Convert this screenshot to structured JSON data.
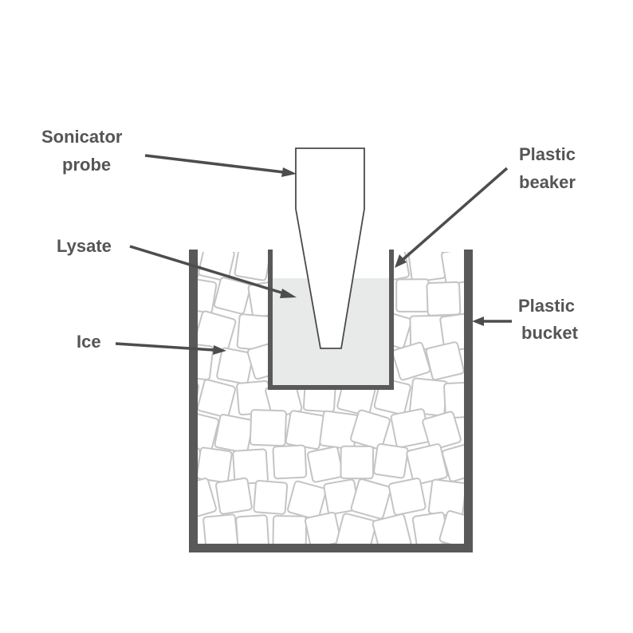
{
  "labels": {
    "sonicator_probe": [
      "Sonicator",
      "probe"
    ],
    "plastic_beaker": [
      "Plastic",
      "beaker"
    ],
    "lysate": "Lysate",
    "ice": "Ice",
    "plastic_bucket": [
      "Plastic",
      "bucket"
    ]
  },
  "colors": {
    "bucket_wall": "#595959",
    "beaker_wall": "#595959",
    "lysate_fill": "#e8e9e9",
    "ice_stroke": "#c4c4c4",
    "ice_fill": "#ffffff",
    "probe_stroke": "#4a4a4a",
    "label_text": "#555555",
    "arrow": "#4d4d4d"
  }
}
